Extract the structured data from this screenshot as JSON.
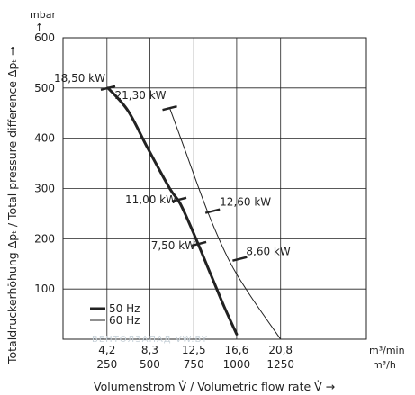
{
  "chart_data": {
    "type": "line",
    "xlabel": "Volumenstrom V̇ / Volumetric flow rate V̇ →",
    "ylabel": "Totaldruckerhöhung Δpₜ / Total pressure difference Δpₜ →",
    "y_unit": "mbar",
    "x_units": [
      "m³/min",
      "m³/h"
    ],
    "xlim": [
      0,
      29
    ],
    "ylim": [
      0,
      600
    ],
    "x_ticks_min": [
      "4,2",
      "8,3",
      "12,5",
      "16,6",
      "20,8"
    ],
    "x_ticks_h": [
      "250",
      "500",
      "750",
      "1000",
      "1250"
    ],
    "x_tick_values": [
      4.2,
      8.3,
      12.5,
      16.6,
      20.8
    ],
    "y_ticks": [
      100,
      200,
      300,
      400,
      500,
      600
    ],
    "grid": true,
    "legend_position": "bottom-left",
    "series": [
      {
        "name": "50 Hz",
        "stroke_width": 3,
        "x": [
          4.3,
          6.2,
          8.1,
          10.2,
          11.2,
          12.5,
          14.2,
          15.4,
          16.6
        ],
        "y": [
          500,
          455,
          380,
          300,
          270,
          210,
          125,
          65,
          10
        ],
        "markers": [
          {
            "x": 4.3,
            "y": 500,
            "label": "18,50 kW"
          },
          {
            "x": 11.1,
            "y": 278,
            "label": "11,00 kW"
          },
          {
            "x": 13.0,
            "y": 190,
            "label": "7,50 kW"
          }
        ]
      },
      {
        "name": "60 Hz",
        "stroke_width": 1,
        "x": [
          10.2,
          11.6,
          13.8,
          15.8,
          17.8,
          20.8
        ],
        "y": [
          460,
          380,
          255,
          160,
          90,
          0
        ],
        "markers": [
          {
            "x": 10.2,
            "y": 460,
            "label": "21,30 kW"
          },
          {
            "x": 14.3,
            "y": 255,
            "label": "12,60 kW"
          },
          {
            "x": 16.9,
            "y": 160,
            "label": "8,60 kW"
          }
        ]
      }
    ],
    "watermark": "ВЕНТОЛЗАПАД     VW.BY"
  }
}
